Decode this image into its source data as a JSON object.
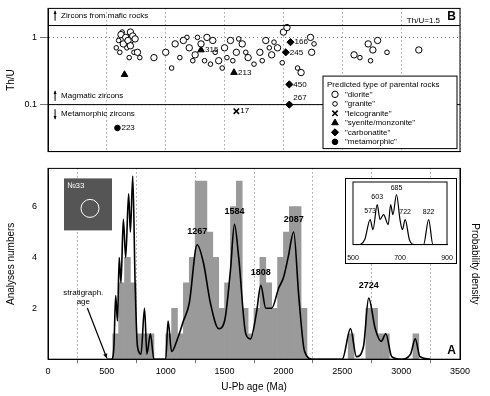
{
  "chart_data": [
    {
      "type": "scatter",
      "title": "B",
      "y_label": "Th/U",
      "xlim": [
        0,
        3500
      ],
      "xticks": [
        0,
        500,
        1000,
        1500,
        2000,
        2500,
        3000,
        3500
      ],
      "ylim": [
        0.02,
        2.7
      ],
      "yticks": [
        0.1,
        1
      ],
      "log": "y",
      "grid": true,
      "tick_labels": "y",
      "legend": "lower right",
      "legend_title": "Predicted type of parental rocks",
      "series": [
        {
          "name": "\"diorite\"",
          "color": "#000000",
          "marker": "circle",
          "x": [
            620,
            640,
            660,
            680,
            700,
            720,
            740,
            700,
            760,
            900,
            1000,
            1080,
            1150,
            1200,
            1250,
            1300,
            1350,
            1400,
            1450,
            1500,
            1550,
            1600,
            1650,
            1700,
            1800,
            1850,
            1900,
            1950,
            2000,
            2030,
            2230,
            2240,
            2150,
            2600,
            2720,
            2760,
            2800,
            3150
          ],
          "values": [
            1.1,
            0.8,
            1.0,
            0.9,
            1.2,
            1.05,
            0.95,
            0.75,
            0.6,
            0.5,
            0.6,
            0.8,
            0.9,
            0.7,
            0.55,
            0.8,
            1.0,
            0.9,
            0.45,
            0.7,
            0.9,
            0.6,
            0.8,
            0.5,
            0.6,
            0.9,
            0.55,
            0.7,
            1.2,
            1.4,
            1.0,
            0.6,
            0.3,
            0.55,
            0.8,
            0.65,
            0.9,
            0.65
          ]
        },
        {
          "name": "\"granite\"",
          "color": "#000000",
          "marker": "small_circle",
          "x": [
            580,
            600,
            610,
            630,
            670,
            690,
            710,
            730,
            780,
            1050,
            1120,
            1180,
            1230,
            1270,
            1330,
            1380,
            1420,
            1480,
            1520,
            1570,
            1620,
            1680,
            1750,
            1820,
            1880,
            1920,
            1990,
            2120,
            2260,
            2650,
            2740,
            2880
          ],
          "values": [
            0.7,
            0.9,
            0.6,
            1.2,
            0.7,
            0.5,
            0.9,
            0.6,
            0.5,
            0.35,
            0.5,
            1.0,
            0.45,
            1.0,
            0.45,
            0.4,
            0.6,
            0.35,
            0.5,
            0.45,
            0.95,
            0.6,
            0.4,
            0.45,
            0.7,
            0.85,
            0.42,
            0.35,
            0.8,
            0.5,
            0.45,
            0.6
          ]
        },
        {
          "name": "\"leicogranite\"",
          "color": "#000000",
          "marker": "x",
          "x": [
            1600
          ],
          "values": [
            0.08
          ]
        },
        {
          "name": "\"syenite/monzonite\"",
          "color": "#000000",
          "marker": "triangle",
          "x": [
            650,
            1300,
            1580
          ],
          "values": [
            0.28,
            0.65,
            0.3
          ]
        },
        {
          "name": "\"carbonatite\"",
          "color": "#000000",
          "marker": "diamond",
          "x": [
            2060,
            2020,
            2050,
            2050
          ],
          "values": [
            0.85,
            0.6,
            0.2,
            0.1
          ]
        },
        {
          "name": "\"metamorphic\"",
          "color": "#000000",
          "marker": "filled_circle",
          "x": [
            590
          ],
          "values": [
            0.045
          ]
        }
      ],
      "reference_lines": [
        {
          "y": 1.5,
          "label": "Th/U=1.5"
        },
        {
          "y": 0.1
        }
      ],
      "annotations": [
        {
          "text": "Zircons from mafic rocks",
          "x": 60,
          "y": 2.1,
          "arrow": "up"
        },
        {
          "text": "Magmatic zircons",
          "x": 60,
          "y": 0.135,
          "arrow": "up"
        },
        {
          "text": "Metamorphic zircons",
          "x": 60,
          "y": 0.072,
          "arrow": "down"
        },
        {
          "text": "315",
          "x": 1300,
          "y": 0.65
        },
        {
          "text": "213",
          "x": 1580,
          "y": 0.3
        },
        {
          "text": "166",
          "x": 2060,
          "y": 0.85
        },
        {
          "text": "245",
          "x": 2020,
          "y": 0.6
        },
        {
          "text": "450",
          "x": 2050,
          "y": 0.2
        },
        {
          "text": "267",
          "x": 2050,
          "y": 0.125
        },
        {
          "text": "17",
          "x": 1600,
          "y": 0.08
        },
        {
          "text": "223",
          "x": 590,
          "y": 0.045
        }
      ]
    },
    {
      "type": "histogram",
      "title": "A",
      "x_label": "U-Pb age (Ma)",
      "y_label": "Analyses numbers",
      "y2_label": "Probability density",
      "xlim": [
        0,
        3500
      ],
      "xticks": [
        0,
        500,
        1000,
        1500,
        2000,
        2500,
        3000,
        3500
      ],
      "ylim": [
        0,
        7.5
      ],
      "yticks": [
        2,
        4,
        6
      ],
      "y2lim": [
        0,
        7.5
      ],
      "y2ticks": [],
      "grid": "x",
      "color": "#9a9a9a",
      "bins": [
        550,
        600,
        650,
        700,
        750,
        800,
        850,
        900,
        950,
        1000,
        1050,
        1100,
        1150,
        1200,
        1250,
        1300,
        1350,
        1400,
        1450,
        1500,
        1550,
        1600,
        1650,
        1700,
        1750,
        1800,
        1850,
        1900,
        1950,
        2000,
        2050,
        2100,
        2150,
        2200,
        2250,
        2300,
        2350,
        2400,
        2450,
        2500,
        2550,
        2600,
        2650,
        2700,
        2750,
        2800,
        2850,
        2900,
        2950,
        3000,
        3050,
        3100,
        3150
      ],
      "values": [
        1,
        3,
        4,
        3,
        1,
        1,
        1,
        0,
        0,
        1,
        2,
        1,
        3,
        4,
        7,
        7,
        5,
        4,
        2,
        3,
        6,
        7,
        2,
        1,
        2,
        4,
        3,
        2,
        4,
        5,
        6,
        6,
        2,
        0,
        0,
        0,
        0,
        0,
        0,
        0,
        1,
        0,
        0,
        2,
        2,
        1,
        1,
        0,
        0,
        0,
        0,
        1
      ],
      "series": [
        {
          "type": "line",
          "axis": "y2",
          "color": "#000000",
          "x": [
            500,
            540,
            560,
            575,
            590,
            605,
            620,
            640,
            660,
            685,
            700,
            720,
            740,
            760,
            790,
            820,
            840,
            870,
            900,
            1000,
            1020,
            1050,
            1100,
            1150,
            1200,
            1267,
            1320,
            1380,
            1450,
            1500,
            1550,
            1584,
            1620,
            1680,
            1720,
            1770,
            1808,
            1850,
            1900,
            1960,
            2000,
            2040,
            2087,
            2130,
            2180,
            2250,
            2500,
            2570,
            2620,
            2680,
            2724,
            2780,
            2830,
            2870,
            2920,
            3000,
            3080,
            3120,
            3160,
            3250
          ],
          "values": [
            0,
            0,
            0.5,
            2.5,
            1.5,
            4,
            3,
            5.5,
            4,
            6.5,
            5,
            7.2,
            3,
            0.5,
            0.2,
            2,
            0.2,
            1,
            0,
            0,
            1.5,
            0.3,
            0.8,
            1.5,
            2.2,
            4.5,
            3.8,
            2.2,
            1.2,
            1.5,
            3.5,
            5.3,
            4,
            1,
            0.8,
            1.8,
            2.9,
            2,
            2,
            2.8,
            3.2,
            4,
            5,
            2.5,
            0.3,
            0,
            0,
            1.2,
            0.1,
            0.5,
            2.4,
            1.2,
            0.7,
            1,
            0.1,
            0,
            0.2,
            0.8,
            0.1,
            0
          ]
        }
      ],
      "inset_label": "№33",
      "annotations": [
        {
          "text": "1267",
          "x": 1267,
          "y": 5.0
        },
        {
          "text": "1584",
          "x": 1584,
          "y": 5.8
        },
        {
          "text": "1808",
          "x": 1808,
          "y": 3.4
        },
        {
          "text": "2087",
          "x": 2087,
          "y": 5.5
        },
        {
          "text": "2724",
          "x": 2724,
          "y": 2.9
        },
        {
          "text": "stratigraph. age",
          "x": 300,
          "y": 2.6,
          "arrow_to": [
            500,
            0
          ]
        }
      ]
    },
    {
      "type": "line",
      "color": "#000000",
      "tick_labels": "x",
      "xlim": [
        500,
        900
      ],
      "xticks": [
        500,
        700,
        900
      ],
      "ylim": [
        0,
        1.25
      ],
      "yticks": [],
      "x": [
        500,
        520,
        550,
        573,
        585,
        603,
        615,
        630,
        650,
        660,
        670,
        685,
        700,
        710,
        722,
        740,
        760,
        800,
        822,
        840,
        900
      ],
      "values": [
        0,
        0,
        0.1,
        0.5,
        0.3,
        0.8,
        0.5,
        0.6,
        0.4,
        0.8,
        0.6,
        1,
        0.5,
        0.3,
        0.5,
        0.1,
        0,
        0,
        0.5,
        0,
        0
      ],
      "annotations": [
        {
          "text": "573",
          "x": 573,
          "y": 0.66
        },
        {
          "text": "603",
          "x": 603,
          "y": 0.94
        },
        {
          "text": "685",
          "x": 685,
          "y": 1.13
        },
        {
          "text": "722",
          "x": 722,
          "y": 0.64
        },
        {
          "text": "822",
          "x": 822,
          "y": 0.64
        }
      ]
    }
  ]
}
